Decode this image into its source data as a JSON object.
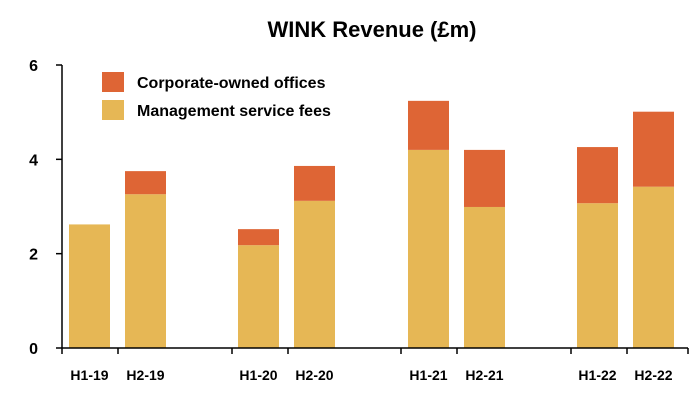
{
  "chart_data": {
    "type": "bar",
    "stacked": true,
    "title": "WINK Revenue (£m)",
    "xlabel": "",
    "ylabel": "",
    "ylim": [
      0,
      6
    ],
    "yticks": [
      "0",
      "2",
      "4",
      "6"
    ],
    "grid": false,
    "legend_position": "top-left",
    "categories": [
      "H1-19",
      "H2-19",
      "H1-20",
      "H2-20",
      "H1-21",
      "H2-21",
      "H1-22",
      "H2-22"
    ],
    "series": [
      {
        "name": "Management service fees",
        "color": "#E6B755",
        "values": [
          2.62,
          3.26,
          2.18,
          3.12,
          4.2,
          2.99,
          3.07,
          3.42
        ]
      },
      {
        "name": "Corporate-owned offices",
        "color": "#DE6535",
        "values": [
          0.0,
          0.49,
          0.34,
          0.74,
          1.04,
          1.21,
          1.19,
          1.59
        ]
      }
    ]
  }
}
